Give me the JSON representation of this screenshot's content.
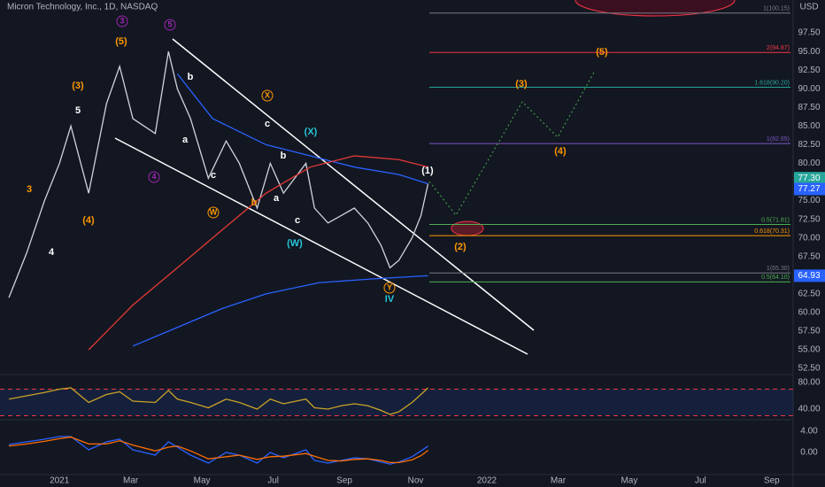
{
  "header": {
    "title": "Micron Technology, Inc., 1D, NASDAQ",
    "currency": "USD"
  },
  "x_axis": {
    "xlim": [
      -1.67,
      20.6
    ],
    "xticks": [
      {
        "value": 0,
        "label": "2021"
      },
      {
        "value": 2,
        "label": "Mar"
      },
      {
        "value": 4,
        "label": "May"
      },
      {
        "value": 6,
        "label": "Jul"
      },
      {
        "value": 8,
        "label": "Sep"
      },
      {
        "value": 10,
        "label": "Nov"
      },
      {
        "value": 12,
        "label": "2022"
      },
      {
        "value": 14,
        "label": "Mar"
      },
      {
        "value": 16,
        "label": "May"
      },
      {
        "value": 18,
        "label": "Jul"
      },
      {
        "value": 20,
        "label": "Sep"
      }
    ]
  },
  "annotations": [
    "(3)",
    "5",
    "3",
    "(4)",
    "4",
    "(5)",
    "b",
    "a",
    "c",
    "W",
    "4",
    "X",
    "c",
    "b",
    "a",
    "b",
    "c",
    "(X)",
    "(W)",
    "Y",
    "IV",
    "(1)",
    "(2)",
    "(3)",
    "(4)",
    "(5)",
    "3",
    "5"
  ],
  "chart_data": [
    {
      "type": "line",
      "ylim": [
        51.8,
        101.9
      ],
      "yticks": [
        {
          "value": 52.5,
          "label": "52.50"
        },
        {
          "value": 55,
          "label": "55.00"
        },
        {
          "value": 57.5,
          "label": "57.50"
        },
        {
          "value": 60,
          "label": "60.00"
        },
        {
          "value": 62.5,
          "label": "62.50"
        },
        {
          "value": 67.5,
          "label": "67.50"
        },
        {
          "value": 70,
          "label": "70.00"
        },
        {
          "value": 72.5,
          "label": "72.50"
        },
        {
          "value": 75,
          "label": "75.00"
        },
        {
          "value": 80,
          "label": "80.00"
        },
        {
          "value": 82.5,
          "label": "82.50"
        },
        {
          "value": 85,
          "label": "85.00"
        },
        {
          "value": 87.5,
          "label": "87.50"
        },
        {
          "value": 90,
          "label": "90.00"
        },
        {
          "value": 92.5,
          "label": "92.50"
        },
        {
          "value": 95,
          "label": "95.00"
        },
        {
          "value": 97.5,
          "label": "97.50"
        }
      ],
      "series": [
        {
          "color": "#d1d4dc",
          "x": [
            -1.42,
            -0.92,
            -0.42,
            0,
            0.32,
            0.82,
            1.32,
            1.69,
            2.06,
            2.69,
            3.06,
            3.31,
            3.68,
            4.18,
            4.68,
            5.05,
            5.55,
            5.92,
            6.29,
            6.92,
            7.16,
            7.54,
            7.91,
            8.28,
            8.66,
            9.03,
            9.28,
            9.53,
            9.9,
            10.15,
            10.35
          ],
          "values": [
            62,
            68,
            75,
            80,
            85,
            76,
            88,
            93,
            86,
            84,
            95,
            90,
            86,
            78,
            83,
            80,
            74,
            80,
            76,
            80,
            74,
            72,
            73,
            74,
            72,
            69,
            66,
            67,
            70,
            73,
            77.3
          ]
        },
        {
          "color": "#2962ff",
          "x": [
            3.31,
            4.3,
            5.8,
            7.04,
            8.28,
            9.53,
            10.35
          ],
          "values": [
            92,
            86,
            82.5,
            81,
            79.5,
            78.5,
            77.27
          ]
        },
        {
          "color": "#e53935",
          "x": [
            0.82,
            2.06,
            3.31,
            4.55,
            5.8,
            7.04,
            8.28,
            9.53,
            10.35
          ],
          "values": [
            55,
            61,
            66,
            71,
            76,
            79.5,
            81,
            80.5,
            79.5
          ]
        },
        {
          "color": "#2962ff",
          "x": [
            2.06,
            3.31,
            4.55,
            5.8,
            7.29,
            8.78,
            10.35
          ],
          "values": [
            55.5,
            58,
            60.5,
            62.5,
            64,
            64.5,
            64.93
          ]
        }
      ],
      "levels": [
        {
          "value": 100.15,
          "label": "1(100.15)",
          "color": "#787b86"
        },
        {
          "value": 94.87,
          "label": "2(94.87)",
          "color": "#f23645"
        },
        {
          "value": 90.2,
          "label": "1.618(90.20)",
          "color": "#26a69a"
        },
        {
          "value": 82.65,
          "label": "1(82.65)",
          "color": "#7e57c2"
        },
        {
          "value": 71.81,
          "label": "0.5(71.81)",
          "color": "#4caf50"
        },
        {
          "value": 70.31,
          "label": "0.618(70.31)",
          "color": "#ff9800"
        },
        {
          "value": 65.3,
          "label": "1(65.30)",
          "color": "#787b86"
        },
        {
          "value": 64.1,
          "label": "0.5(64.10)",
          "color": "#4caf50"
        }
      ],
      "price_labels": [
        {
          "value": 77.3,
          "label": "77.30",
          "color": "#26a69a"
        },
        {
          "value": 77.27,
          "label": "77.27",
          "color": "#2962ff"
        },
        {
          "value": 64.93,
          "label": "64.93",
          "color": "#2962ff"
        }
      ]
    },
    {
      "type": "line",
      "ylim": [
        26.7,
        89.3
      ],
      "yticks": [
        {
          "value": 80,
          "label": "80.00"
        },
        {
          "value": 40,
          "label": "40.00"
        }
      ],
      "bands": [
        70,
        30
      ],
      "series": [
        {
          "color": "#c9a227",
          "x": [
            -1.42,
            -0.92,
            -0.42,
            0,
            0.32,
            0.82,
            1.32,
            1.69,
            2.06,
            2.69,
            3.06,
            3.31,
            3.68,
            4.18,
            4.68,
            5.05,
            5.55,
            5.92,
            6.29,
            6.92,
            7.16,
            7.54,
            7.91,
            8.28,
            8.66,
            9.03,
            9.28,
            9.53,
            9.9,
            10.15,
            10.35
          ],
          "values": [
            55,
            60,
            65,
            70,
            72,
            50,
            62,
            66,
            52,
            50,
            68,
            55,
            50,
            42,
            55,
            50,
            40,
            55,
            48,
            55,
            42,
            40,
            45,
            48,
            45,
            38,
            32,
            36,
            50,
            62,
            72
          ]
        }
      ]
    },
    {
      "type": "line",
      "ylim": [
        -4,
        5.83
      ],
      "yticks": [
        {
          "value": 4,
          "label": "4.00"
        },
        {
          "value": 0,
          "label": "0.00"
        }
      ],
      "series": [
        {
          "color": "#2962ff",
          "x": [
            -1.42,
            -0.92,
            -0.42,
            0,
            0.32,
            0.82,
            1.32,
            1.69,
            2.06,
            2.69,
            3.06,
            3.31,
            3.68,
            4.18,
            4.68,
            5.05,
            5.55,
            5.92,
            6.29,
            6.92,
            7.16,
            7.54,
            7.91,
            8.28,
            8.66,
            9.03,
            9.28,
            9.53,
            9.9,
            10.15,
            10.35
          ],
          "values": [
            1.5,
            2,
            2.5,
            3,
            3,
            0.5,
            2,
            2.5,
            0.5,
            -0.5,
            2,
            1,
            -0.5,
            -2,
            0,
            -0.5,
            -2,
            0,
            -1,
            0.5,
            -1.5,
            -2,
            -1.5,
            -1,
            -1.2,
            -1.8,
            -2.2,
            -1.8,
            -0.8,
            0.3,
            1.2
          ]
        },
        {
          "color": "#ff6d00",
          "x": [
            -1.42,
            -0.92,
            -0.42,
            0,
            0.32,
            0.82,
            1.32,
            1.69,
            2.06,
            2.69,
            3.06,
            3.31,
            3.68,
            4.18,
            4.68,
            5.05,
            5.55,
            5.92,
            6.29,
            6.92,
            7.16,
            7.54,
            7.91,
            8.28,
            8.66,
            9.03,
            9.28,
            9.53,
            9.9,
            10.15,
            10.35
          ],
          "values": [
            1.2,
            1.6,
            2.1,
            2.6,
            2.9,
            1.6,
            1.6,
            2.2,
            1.4,
            0.3,
            1,
            1.2,
            0.3,
            -1.2,
            -0.8,
            -0.5,
            -1.3,
            -0.8,
            -0.7,
            -0.2,
            -0.7,
            -1.5,
            -1.6,
            -1.3,
            -1.2,
            -1.5,
            -1.9,
            -1.9,
            -1.4,
            -0.6,
            0.4
          ]
        }
      ]
    }
  ]
}
